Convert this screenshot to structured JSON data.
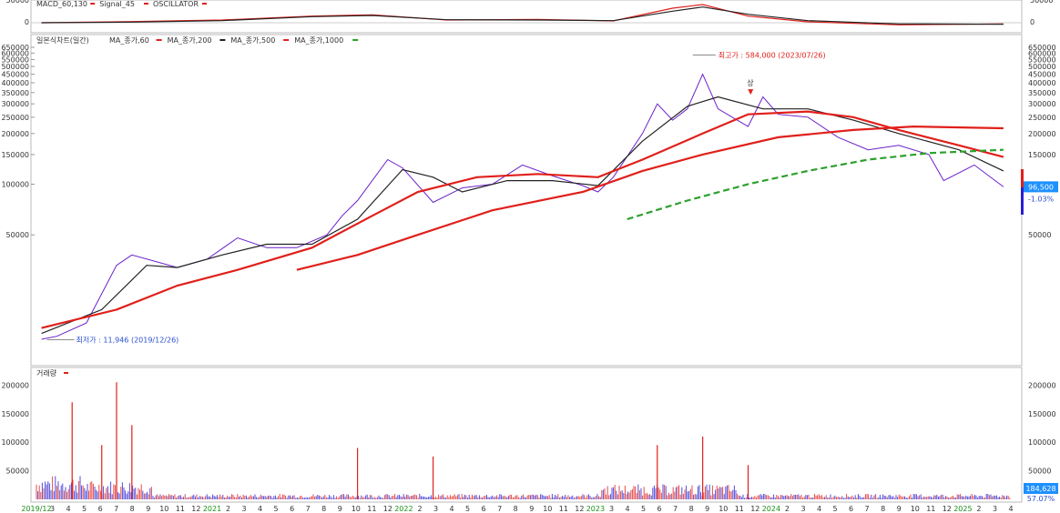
{
  "chart_data": [
    {
      "type": "line",
      "panel": "macd",
      "legend": [
        {
          "label": "MACD_60,130",
          "color": "#e0201b"
        },
        {
          "label": "Signal_45",
          "color": "#e0201b"
        },
        {
          "label": "OSCILLATOR",
          "color": "#e0201b"
        }
      ],
      "y_ticks_left": [
        "50000",
        "0"
      ],
      "y_ticks_right": [
        "50000",
        "0"
      ],
      "series": [
        {
          "style": "macd",
          "color": "#e0201b",
          "x": [
            "2019-12",
            "2020-06",
            "2020-12",
            "2021-06",
            "2021-10",
            "2022-03",
            "2022-09",
            "2023-02",
            "2023-06",
            "2023-08",
            "2023-11",
            "2024-03",
            "2024-09",
            "2025-04"
          ],
          "values": [
            0,
            4000,
            9000,
            22000,
            26000,
            9000,
            11000,
            6000,
            48000,
            60000,
            22000,
            3000,
            -7000,
            -4000
          ]
        },
        {
          "style": "signal",
          "color": "#222222",
          "x": [
            "2019-12",
            "2020-06",
            "2020-12",
            "2021-06",
            "2021-10",
            "2022-03",
            "2022-09",
            "2023-02",
            "2023-06",
            "2023-08",
            "2023-11",
            "2024-03",
            "2024-09",
            "2025-04"
          ],
          "values": [
            0,
            2000,
            7000,
            20000,
            24000,
            10000,
            9000,
            7000,
            38000,
            52000,
            28000,
            7000,
            -4000,
            -5000
          ]
        }
      ]
    },
    {
      "type": "line",
      "panel": "price",
      "title": "일본식차트(일간)",
      "scale": "log",
      "legend": [
        {
          "label": "MA_종가,60",
          "color": "#e0201b"
        },
        {
          "label": "MA_종가,200",
          "color": "#222222"
        },
        {
          "label": "MA_종가,500",
          "color": "#e0201b"
        },
        {
          "label": "MA_종가,1000",
          "color": "#2ca02c"
        }
      ],
      "y_ticks": [
        "650000",
        "600000",
        "550000",
        "500000",
        "450000",
        "400000",
        "350000",
        "300000",
        "250000",
        "200000",
        "150000",
        "100000",
        "50000"
      ],
      "last_price": "96,500",
      "last_change": "-1.03%",
      "annotations": [
        {
          "text": "최고가 : 584,000 (2023/07/26)",
          "x": "2023-07-26",
          "y": 584000,
          "color": "#e0201b"
        },
        {
          "text": "최저가 : 11,946 (2019/12/26)",
          "x": "2019-12-26",
          "y": 11946,
          "color": "#2a4fd1"
        },
        {
          "text": "상",
          "x": "2023-11-20",
          "y": 300000,
          "color": "#333333"
        }
      ],
      "series": [
        {
          "name": "price",
          "color": "#6a1fc9",
          "x": [
            "2019-12",
            "2020-01",
            "2020-03",
            "2020-05",
            "2020-06",
            "2020-09",
            "2020-11",
            "2021-01",
            "2021-03",
            "2021-05",
            "2021-07",
            "2021-08",
            "2021-09",
            "2021-11",
            "2021-12",
            "2022-02",
            "2022-04",
            "2022-06",
            "2022-08",
            "2022-10",
            "2022-12",
            "2023-01",
            "2023-02",
            "2023-04",
            "2023-05",
            "2023-06",
            "2023-07",
            "2023-08",
            "2023-09",
            "2023-11",
            "2023-12",
            "2024-01",
            "2024-03",
            "2024-05",
            "2024-07",
            "2024-09",
            "2024-11",
            "2024-12",
            "2025-02",
            "2025-04"
          ],
          "values": [
            12000,
            12500,
            15000,
            33000,
            38000,
            32000,
            36000,
            48000,
            42000,
            42000,
            50000,
            65000,
            80000,
            140000,
            125000,
            78000,
            95000,
            100000,
            130000,
            112000,
            98000,
            90000,
            110000,
            200000,
            300000,
            240000,
            280000,
            450000,
            280000,
            220000,
            330000,
            260000,
            250000,
            190000,
            160000,
            170000,
            150000,
            105000,
            130000,
            96500
          ]
        },
        {
          "name": "MA_종가,60",
          "color": "#222222",
          "x": [
            "2019-12",
            "2020-04",
            "2020-07",
            "2020-09",
            "2020-12",
            "2021-03",
            "2021-06",
            "2021-09",
            "2021-12",
            "2022-02",
            "2022-04",
            "2022-07",
            "2022-10",
            "2023-01",
            "2023-04",
            "2023-07",
            "2023-09",
            "2023-12",
            "2024-03",
            "2024-06",
            "2024-09",
            "2025-01",
            "2025-04"
          ],
          "values": [
            13000,
            18000,
            33000,
            32000,
            38000,
            44000,
            44000,
            62000,
            122000,
            110000,
            90000,
            105000,
            105000,
            98000,
            180000,
            290000,
            330000,
            280000,
            280000,
            240000,
            200000,
            160000,
            120000
          ]
        },
        {
          "name": "MA_종가,200",
          "color": "#e0201b",
          "x": [
            "2019-12",
            "2020-05",
            "2020-09",
            "2021-01",
            "2021-06",
            "2021-10",
            "2022-01",
            "2022-05",
            "2022-09",
            "2023-01",
            "2023-04",
            "2023-08",
            "2023-11",
            "2024-03",
            "2024-06",
            "2024-09",
            "2025-01",
            "2025-04"
          ],
          "values": [
            14000,
            18000,
            25000,
            31000,
            42000,
            65000,
            90000,
            110000,
            115000,
            110000,
            140000,
            200000,
            260000,
            270000,
            250000,
            210000,
            170000,
            145000
          ]
        },
        {
          "name": "MA_종가,500",
          "color": "#e0201b",
          "x": [
            "2021-05",
            "2021-09",
            "2022-01",
            "2022-06",
            "2022-12",
            "2023-04",
            "2023-08",
            "2024-01",
            "2024-06",
            "2024-10",
            "2025-04"
          ],
          "values": [
            31000,
            38000,
            50000,
            70000,
            90000,
            120000,
            150000,
            190000,
            210000,
            220000,
            215000
          ]
        },
        {
          "name": "MA_종가,1000",
          "color": "#2ca02c",
          "x": [
            "2023-03",
            "2023-07",
            "2023-11",
            "2024-03",
            "2024-07",
            "2024-11",
            "2025-04"
          ],
          "values": [
            62000,
            80000,
            100000,
            120000,
            140000,
            153000,
            160000
          ]
        }
      ]
    },
    {
      "type": "bar",
      "panel": "volume",
      "title": "거래량",
      "y_ticks": [
        "200000",
        "150000",
        "100000",
        "50000"
      ],
      "last_volume": "184,628",
      "last_ratio": "57.07%",
      "x_ticks": [
        "2019/12",
        "3",
        "4",
        "5",
        "6",
        "7",
        "8",
        "9",
        "10",
        "11",
        "12",
        "2021",
        "2",
        "3",
        "4",
        "5",
        "6",
        "7",
        "8",
        "9",
        "10",
        "11",
        "12",
        "2022",
        "2",
        "3",
        "4",
        "5",
        "6",
        "7",
        "8",
        "9",
        "10",
        "11",
        "12",
        "2023",
        "3",
        "4",
        "5",
        "6",
        "7",
        "8",
        "9",
        "10",
        "11",
        "12",
        "2024",
        "2",
        "3",
        "4",
        "5",
        "6",
        "7",
        "8",
        "9",
        "10",
        "11",
        "12",
        "2025",
        "2",
        "3",
        "4"
      ],
      "colors": {
        "up": "#e0201b",
        "down": "#2a1fd1"
      },
      "spikes": [
        {
          "x": "2020-02",
          "value": 170000
        },
        {
          "x": "2020-04",
          "value": 95000
        },
        {
          "x": "2020-05",
          "value": 205000
        },
        {
          "x": "2020-06",
          "value": 130000
        },
        {
          "x": "2021-09",
          "value": 90000
        },
        {
          "x": "2022-02",
          "value": 75000
        },
        {
          "x": "2023-05",
          "value": 95000
        },
        {
          "x": "2023-08",
          "value": 110000
        },
        {
          "x": "2023-11",
          "value": 60000
        }
      ]
    }
  ]
}
